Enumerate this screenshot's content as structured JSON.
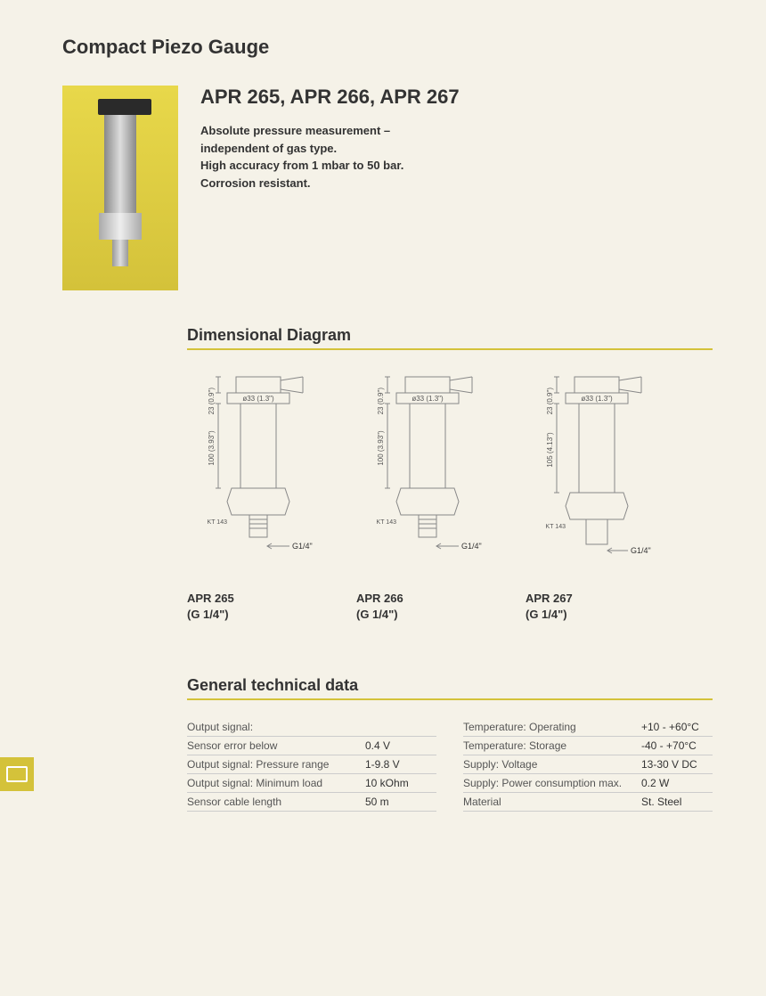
{
  "page_title": "Compact Piezo Gauge",
  "hero": {
    "model_heading": "APR 265, APR 266, APR 267",
    "desc_line1": "Absolute pressure measurement –",
    "desc_line2": "independent of gas type.",
    "desc_line3": "High accuracy from 1 mbar to 50 bar.",
    "desc_line4": "Corrosion resistant.",
    "photo_bg": "#d4c23a"
  },
  "dimensional": {
    "heading": "Dimensional Diagram",
    "rule_color": "#d4c23a",
    "diagrams": [
      {
        "top_dim": "23 (0.9\")",
        "dia_dim": "ø33 (1.3\")",
        "body_dim": "100 (3.93\")",
        "kt": "KT 143",
        "thread": "G1/4\"",
        "label_model": "APR 265",
        "label_thread": "(G 1/4\")"
      },
      {
        "top_dim": "23 (0.9\")",
        "dia_dim": "ø33 (1.3\")",
        "body_dim": "100 (3.93\")",
        "kt": "KT 143",
        "thread": "G1/4\"",
        "label_model": "APR 266",
        "label_thread": "(G 1/4\")"
      },
      {
        "top_dim": "23 (0.9\")",
        "dia_dim": "ø33 (1.3\")",
        "body_dim": "105 (4.13\")",
        "kt": "KT 143",
        "thread": "G1/4\"",
        "label_model": "APR 267",
        "label_thread": "(G 1/4\")"
      }
    ],
    "stroke": "#888",
    "text_color": "#555",
    "font_size": 8
  },
  "tech": {
    "heading": "General technical data",
    "left": [
      {
        "k": "Output signal:",
        "v": ""
      },
      {
        "k": "Sensor error below",
        "v": "0.4 V"
      },
      {
        "k": "Output signal: Pressure range",
        "v": "1-9.8 V"
      },
      {
        "k": "Output signal: Minimum load",
        "v": "10 kOhm"
      },
      {
        "k": "Sensor cable length",
        "v": "50 m"
      }
    ],
    "right": [
      {
        "k": "Temperature: Operating",
        "v": "+10 - +60°C"
      },
      {
        "k": "Temperature: Storage",
        "v": "-40 - +70°C"
      },
      {
        "k": "Supply: Voltage",
        "v": "13-30 V DC"
      },
      {
        "k": "Supply: Power consumption max.",
        "v": "0.2 W"
      },
      {
        "k": "Material",
        "v": "St. Steel"
      }
    ]
  }
}
